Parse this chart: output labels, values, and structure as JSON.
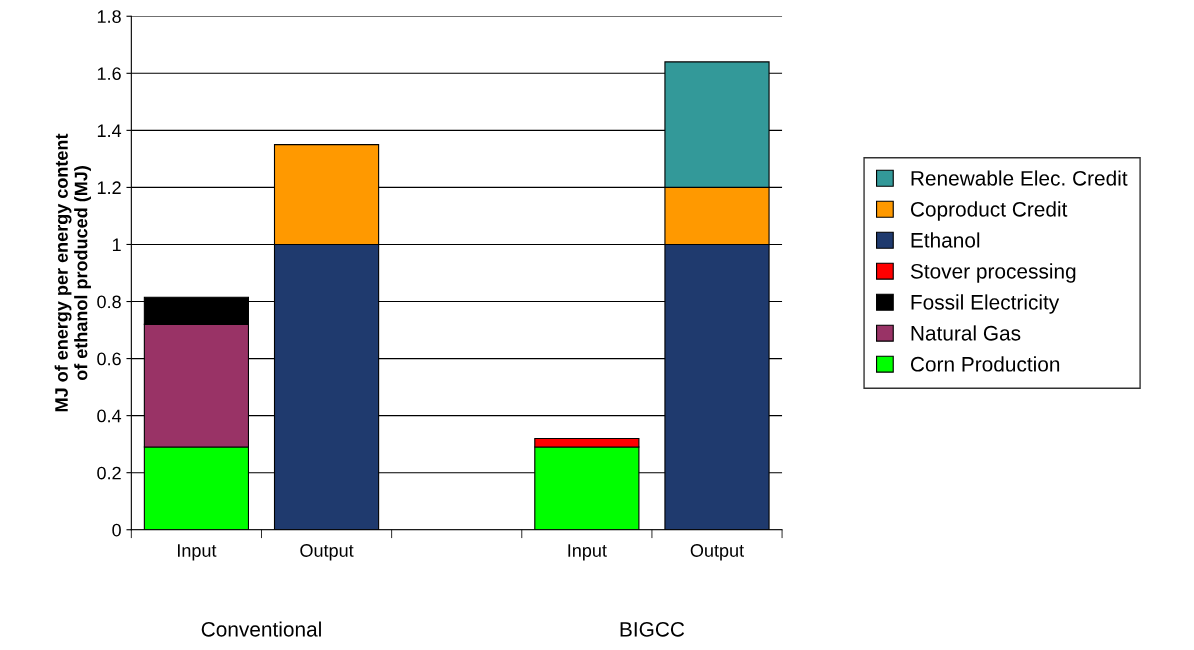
{
  "chart_data": {
    "type": "bar",
    "stacked": true,
    "ylabel": "MJ of energy per energy content\nof ethanol produced (MJ)",
    "categories": [
      "Input",
      "Output",
      null,
      "Input",
      "Output"
    ],
    "annotations": [
      "Conventional",
      "BIGCC"
    ],
    "series": [
      {
        "name": "Corn Production",
        "color": "#00ff00",
        "values": [
          0.29,
          null,
          null,
          0.29,
          null
        ]
      },
      {
        "name": "Natural Gas",
        "color": "#993366",
        "values": [
          0.43,
          null,
          null,
          null,
          null
        ]
      },
      {
        "name": "Fossil Electricity",
        "color": "#000000",
        "values": [
          0.095,
          null,
          null,
          null,
          null
        ]
      },
      {
        "name": "Stover processing",
        "color": "#ff0000",
        "values": [
          null,
          null,
          null,
          0.03,
          null
        ]
      },
      {
        "name": "Ethanol",
        "color": "#1f3a6e",
        "values": [
          null,
          1.0,
          null,
          null,
          1.0
        ]
      },
      {
        "name": "Coproduct Credit",
        "color": "#ff9900",
        "values": [
          null,
          0.35,
          null,
          null,
          0.2
        ]
      },
      {
        "name": "Renewable Elec. Credit",
        "color": "#339999",
        "values": [
          null,
          null,
          null,
          null,
          0.44
        ]
      }
    ],
    "ylim": [
      0,
      1.8
    ],
    "yticks": [
      0,
      0.2,
      0.4,
      0.6,
      0.8,
      1,
      1.2,
      1.4,
      1.6,
      1.8
    ],
    "grid": "y",
    "legend": "right"
  }
}
